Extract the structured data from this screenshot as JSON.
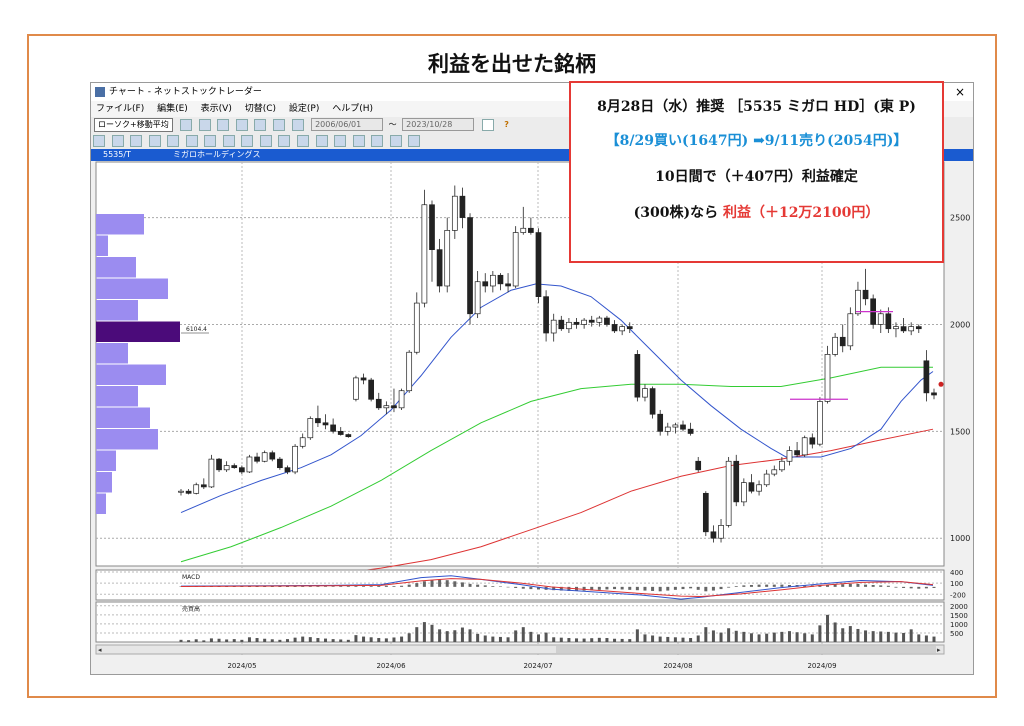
{
  "page": {
    "title": "利益を出せた銘柄"
  },
  "window": {
    "title": "チャート - ネットストックトレーダー",
    "close": "×",
    "menu": [
      "ファイル(F)",
      "編集(E)",
      "表示(V)",
      "切替(C)",
      "設定(P)",
      "ヘルプ(H)"
    ],
    "indicator_select": "ローソク+移動平均",
    "date_from": "2006/06/01",
    "date_sep": "～",
    "date_to": "2023/10/28",
    "help": "?"
  },
  "chart_header": {
    "code": "5535/T",
    "name": "ミガロホールディングス"
  },
  "callout": {
    "line1": "8月28日（水）推奨 ［5535 ミガロ HD］(東 P)",
    "line2": "【8/29買い(1647円) ➡9/11売り(2054円)】",
    "line3": "10日間で（＋407円）利益確定",
    "line4_prefix": "(300株)なら",
    "line4_profit": "利益（＋12万2100円）"
  },
  "colors": {
    "up": "#ffffff",
    "down": "#222222",
    "ma_short": "#3355cc",
    "ma_mid": "#33cc33",
    "ma_long": "#dd3333",
    "volume_profile": "#9b8cf0",
    "volume_profile_peak": "#4b0b7a",
    "header": "#1a5bd0"
  },
  "chart_data": {
    "type": "candlestick",
    "x_labels": [
      "2024/05",
      "2024/06",
      "2024/07",
      "2024/08",
      "2024/09"
    ],
    "y_ticks": [
      1000,
      1500,
      2000,
      2500
    ],
    "ylim": [
      870,
      2760
    ],
    "volume_profile_label": "6104.4",
    "candles": [
      [
        1215,
        1230,
        1200,
        1220
      ],
      [
        1220,
        1230,
        1205,
        1210
      ],
      [
        1210,
        1260,
        1205,
        1250
      ],
      [
        1250,
        1280,
        1230,
        1240
      ],
      [
        1240,
        1390,
        1235,
        1370
      ],
      [
        1370,
        1375,
        1310,
        1320
      ],
      [
        1320,
        1360,
        1310,
        1340
      ],
      [
        1340,
        1350,
        1325,
        1330
      ],
      [
        1330,
        1340,
        1300,
        1310
      ],
      [
        1310,
        1390,
        1305,
        1380
      ],
      [
        1380,
        1400,
        1350,
        1360
      ],
      [
        1360,
        1410,
        1355,
        1400
      ],
      [
        1400,
        1410,
        1360,
        1370
      ],
      [
        1370,
        1380,
        1320,
        1330
      ],
      [
        1330,
        1340,
        1300,
        1310
      ],
      [
        1310,
        1440,
        1300,
        1430
      ],
      [
        1430,
        1490,
        1420,
        1470
      ],
      [
        1470,
        1570,
        1460,
        1560
      ],
      [
        1560,
        1620,
        1520,
        1540
      ],
      [
        1540,
        1580,
        1510,
        1530
      ],
      [
        1530,
        1560,
        1490,
        1500
      ],
      [
        1500,
        1520,
        1480,
        1485
      ],
      [
        1485,
        1490,
        1470,
        1475
      ],
      [
        1650,
        1760,
        1640,
        1750
      ],
      [
        1750,
        1770,
        1720,
        1740
      ],
      [
        1740,
        1750,
        1640,
        1650
      ],
      [
        1650,
        1680,
        1600,
        1610
      ],
      [
        1610,
        1640,
        1580,
        1620
      ],
      [
        1620,
        1700,
        1590,
        1610
      ],
      [
        1610,
        1700,
        1600,
        1690
      ],
      [
        1690,
        1880,
        1680,
        1870
      ],
      [
        1870,
        2150,
        1860,
        2100
      ],
      [
        2100,
        2630,
        2080,
        2560
      ],
      [
        2560,
        2580,
        2200,
        2350
      ],
      [
        2350,
        2400,
        2150,
        2180
      ],
      [
        2180,
        2500,
        2150,
        2440
      ],
      [
        2440,
        2650,
        2400,
        2600
      ],
      [
        2600,
        2640,
        2450,
        2500
      ],
      [
        2500,
        2520,
        2000,
        2050
      ],
      [
        2050,
        2250,
        2030,
        2200
      ],
      [
        2200,
        2240,
        2150,
        2180
      ],
      [
        2180,
        2250,
        2150,
        2230
      ],
      [
        2230,
        2240,
        2160,
        2190
      ],
      [
        2190,
        2240,
        2150,
        2180
      ],
      [
        2180,
        2460,
        2170,
        2430
      ],
      [
        2430,
        2550,
        2420,
        2450
      ],
      [
        2450,
        2500,
        2420,
        2430
      ],
      [
        2430,
        2450,
        2100,
        2130
      ],
      [
        2130,
        2160,
        1920,
        1960
      ],
      [
        1960,
        2050,
        1920,
        2020
      ],
      [
        2020,
        2040,
        1970,
        1980
      ],
      [
        1980,
        2030,
        1960,
        2010
      ],
      [
        2010,
        2030,
        1980,
        2000
      ],
      [
        2000,
        2030,
        1980,
        2020
      ],
      [
        2020,
        2040,
        1990,
        2010
      ],
      [
        2010,
        2040,
        1990,
        2030
      ],
      [
        2030,
        2040,
        1990,
        2000
      ],
      [
        2000,
        2020,
        1960,
        1970
      ],
      [
        1970,
        2000,
        1950,
        1990
      ],
      [
        1990,
        2010,
        1960,
        1980
      ],
      [
        1860,
        1880,
        1640,
        1660
      ],
      [
        1660,
        1720,
        1640,
        1700
      ],
      [
        1700,
        1710,
        1560,
        1580
      ],
      [
        1580,
        1600,
        1480,
        1500
      ],
      [
        1500,
        1540,
        1480,
        1520
      ],
      [
        1520,
        1540,
        1490,
        1530
      ],
      [
        1530,
        1550,
        1500,
        1510
      ],
      [
        1510,
        1540,
        1480,
        1490
      ],
      [
        1360,
        1380,
        1310,
        1320
      ],
      [
        1210,
        1220,
        1010,
        1030
      ],
      [
        1030,
        1060,
        980,
        1000
      ],
      [
        1000,
        1090,
        980,
        1060
      ],
      [
        1060,
        1380,
        1050,
        1360
      ],
      [
        1360,
        1390,
        1150,
        1170
      ],
      [
        1170,
        1280,
        1150,
        1260
      ],
      [
        1260,
        1300,
        1210,
        1220
      ],
      [
        1220,
        1270,
        1200,
        1250
      ],
      [
        1250,
        1320,
        1240,
        1300
      ],
      [
        1300,
        1340,
        1290,
        1320
      ],
      [
        1320,
        1380,
        1310,
        1360
      ],
      [
        1360,
        1430,
        1340,
        1410
      ],
      [
        1410,
        1450,
        1380,
        1390
      ],
      [
        1390,
        1480,
        1380,
        1470
      ],
      [
        1470,
        1490,
        1420,
        1440
      ],
      [
        1440,
        1660,
        1430,
        1640
      ],
      [
        1640,
        1900,
        1630,
        1860
      ],
      [
        1860,
        1960,
        1850,
        1940
      ],
      [
        1940,
        2000,
        1870,
        1900
      ],
      [
        1900,
        2080,
        1880,
        2050
      ],
      [
        2050,
        2200,
        2040,
        2160
      ],
      [
        2160,
        2260,
        2090,
        2120
      ],
      [
        2120,
        2140,
        1980,
        2000
      ],
      [
        2000,
        2070,
        1960,
        2050
      ],
      [
        2050,
        2080,
        1960,
        1980
      ],
      [
        1980,
        2010,
        1940,
        1990
      ],
      [
        1990,
        2030,
        1960,
        1970
      ],
      [
        1970,
        2010,
        1950,
        1990
      ],
      [
        1990,
        2000,
        1960,
        1980
      ],
      [
        1830,
        1880,
        1640,
        1680
      ],
      [
        1680,
        1700,
        1650,
        1670
      ]
    ],
    "ma_short": [
      [
        0,
        1120
      ],
      [
        40,
        1200
      ],
      [
        80,
        1270
      ],
      [
        120,
        1330
      ],
      [
        150,
        1390
      ],
      [
        180,
        1480
      ],
      [
        210,
        1600
      ],
      [
        240,
        1760
      ],
      [
        270,
        1940
      ],
      [
        300,
        2080
      ],
      [
        330,
        2160
      ],
      [
        355,
        2190
      ],
      [
        380,
        2180
      ],
      [
        410,
        2130
      ],
      [
        440,
        2020
      ],
      [
        470,
        1880
      ],
      [
        500,
        1740
      ],
      [
        530,
        1620
      ],
      [
        560,
        1510
      ],
      [
        590,
        1420
      ],
      [
        605,
        1380
      ],
      [
        640,
        1380
      ],
      [
        670,
        1420
      ],
      [
        700,
        1510
      ],
      [
        720,
        1640
      ],
      [
        740,
        1740
      ],
      [
        752,
        1780
      ]
    ],
    "ma_mid": [
      [
        0,
        890
      ],
      [
        50,
        960
      ],
      [
        100,
        1050
      ],
      [
        150,
        1150
      ],
      [
        200,
        1270
      ],
      [
        250,
        1410
      ],
      [
        300,
        1540
      ],
      [
        350,
        1640
      ],
      [
        400,
        1700
      ],
      [
        450,
        1720
      ],
      [
        500,
        1720
      ],
      [
        550,
        1710
      ],
      [
        600,
        1710
      ],
      [
        650,
        1750
      ],
      [
        700,
        1800
      ],
      [
        752,
        1800
      ]
    ],
    "ma_long": [
      [
        120,
        810
      ],
      [
        200,
        860
      ],
      [
        250,
        900
      ],
      [
        300,
        960
      ],
      [
        350,
        1040
      ],
      [
        400,
        1120
      ],
      [
        450,
        1220
      ],
      [
        500,
        1290
      ],
      [
        550,
        1340
      ],
      [
        600,
        1370
      ],
      [
        650,
        1410
      ],
      [
        700,
        1460
      ],
      [
        752,
        1510
      ]
    ],
    "volume_profile_widths": [
      48,
      12,
      40,
      72,
      42,
      84,
      32,
      70,
      42,
      54,
      62,
      20,
      16,
      10
    ],
    "macd": {
      "label": "MACD",
      "y_ticks": [
        400,
        100,
        -200
      ],
      "macd_line": [
        [
          0,
          20
        ],
        [
          80,
          30
        ],
        [
          150,
          40
        ],
        [
          200,
          60
        ],
        [
          240,
          250
        ],
        [
          270,
          300
        ],
        [
          300,
          200
        ],
        [
          340,
          60
        ],
        [
          370,
          -60
        ],
        [
          420,
          -150
        ],
        [
          460,
          -220
        ],
        [
          500,
          -330
        ],
        [
          520,
          -280
        ],
        [
          560,
          -150
        ],
        [
          600,
          -20
        ],
        [
          640,
          80
        ],
        [
          680,
          170
        ],
        [
          720,
          140
        ],
        [
          752,
          40
        ]
      ],
      "signal_line": [
        [
          0,
          10
        ],
        [
          80,
          20
        ],
        [
          150,
          30
        ],
        [
          200,
          40
        ],
        [
          240,
          160
        ],
        [
          270,
          220
        ],
        [
          300,
          200
        ],
        [
          340,
          100
        ],
        [
          370,
          0
        ],
        [
          420,
          -100
        ],
        [
          460,
          -180
        ],
        [
          500,
          -250
        ],
        [
          520,
          -260
        ],
        [
          560,
          -190
        ],
        [
          600,
          -80
        ],
        [
          640,
          40
        ],
        [
          680,
          120
        ],
        [
          720,
          140
        ],
        [
          752,
          60
        ]
      ],
      "hist": [
        10,
        10,
        10,
        10,
        10,
        10,
        10,
        10,
        10,
        10,
        10,
        10,
        10,
        10,
        10,
        10,
        10,
        10,
        10,
        10,
        10,
        20,
        20,
        20,
        20,
        20,
        30,
        30,
        20,
        30,
        60,
        100,
        150,
        180,
        200,
        180,
        150,
        120,
        80,
        60,
        40,
        20,
        10,
        -10,
        -30,
        -50,
        -60,
        -70,
        -80,
        -90,
        -100,
        -110,
        -110,
        -100,
        -90,
        -80,
        -70,
        -60,
        -70,
        -80,
        -90,
        -100,
        -110,
        -120,
        -100,
        -80,
        -60,
        -40,
        -80,
        -120,
        -100,
        -60,
        -20,
        20,
        40,
        50,
        60,
        60,
        60,
        60,
        50,
        50,
        40,
        40,
        50,
        60,
        70,
        70,
        80,
        80,
        60,
        50,
        40,
        30,
        -20,
        -30,
        -40,
        -50,
        -40,
        -30
      ]
    },
    "volume": {
      "label": "売買高",
      "y_ticks": [
        2000,
        1500,
        1000,
        500
      ],
      "bars": [
        120,
        100,
        150,
        90,
        200,
        180,
        140,
        160,
        120,
        260,
        220,
        180,
        150,
        120,
        160,
        240,
        300,
        270,
        220,
        190,
        160,
        140,
        120,
        380,
        300,
        260,
        220,
        200,
        250,
        300,
        480,
        820,
        1100,
        950,
        700,
        600,
        650,
        800,
        700,
        450,
        360,
        300,
        280,
        260,
        640,
        820,
        560,
        420,
        520,
        260,
        240,
        220,
        200,
        190,
        210,
        230,
        220,
        180,
        170,
        160,
        700,
        420,
        360,
        300,
        280,
        260,
        240,
        220,
        360,
        820,
        640,
        520,
        760,
        620,
        560,
        480,
        420,
        460,
        520,
        560,
        600,
        540,
        480,
        420,
        920,
        1500,
        1080,
        760,
        880,
        720,
        640,
        600,
        580,
        560,
        520,
        500,
        700,
        420,
        360,
        300
      ]
    }
  }
}
